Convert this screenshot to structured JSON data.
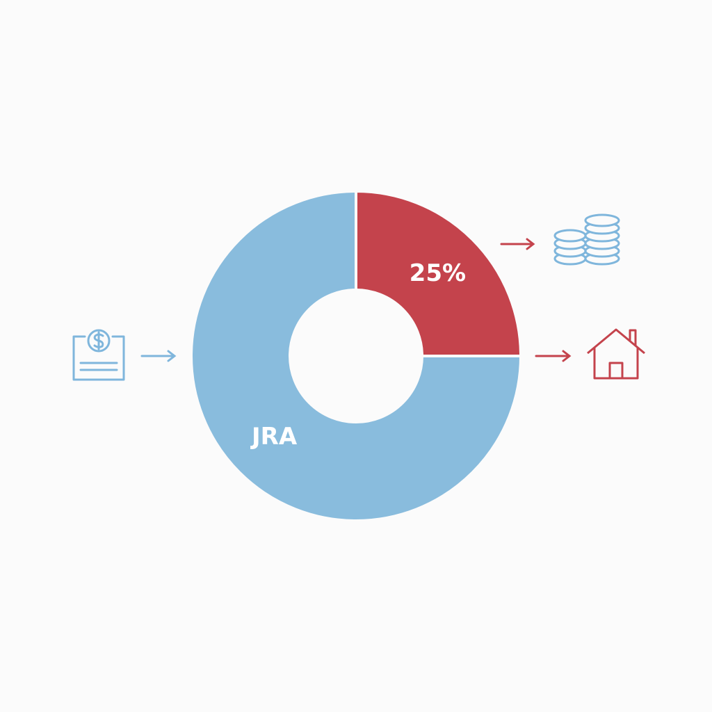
{
  "chart_data": {
    "type": "pie",
    "categories": [
      null,
      "JRA"
    ],
    "values": [
      25,
      75
    ],
    "value_labels": [
      "25%",
      null
    ],
    "colors": [
      "#c4434c",
      "#89bcdd"
    ],
    "donut": true
  }
}
